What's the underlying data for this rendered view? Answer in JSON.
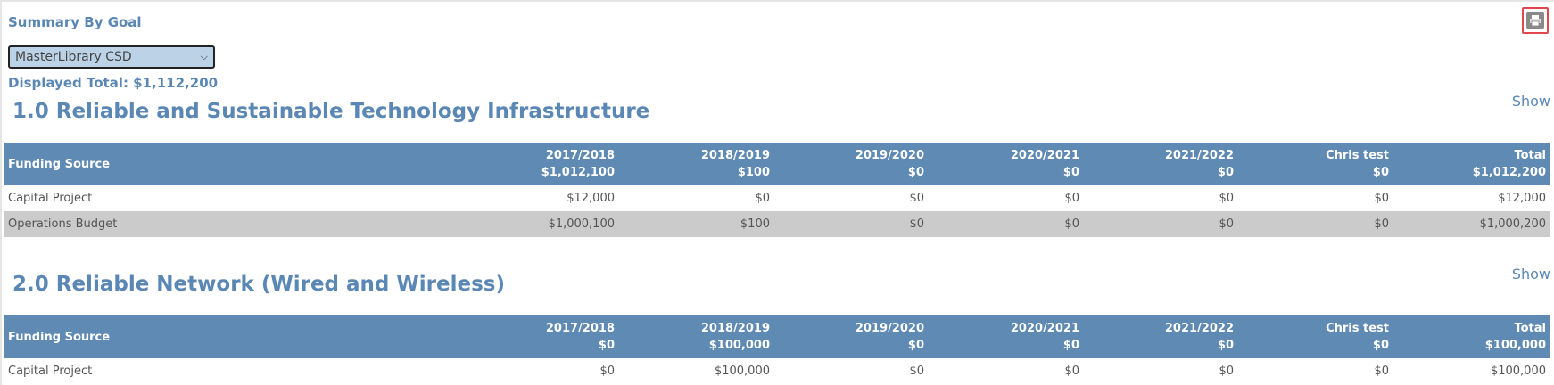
{
  "page": {
    "title": "Summary By Goal",
    "print_icon": "print-icon",
    "library_select": {
      "selected": "MasterLibrary CSD"
    },
    "displayed_total": "Displayed Total: $1,112,200"
  },
  "goals": [
    {
      "title": "1.0 Reliable and Sustainable Technology Infrastructure",
      "show_label": "Show",
      "columns": [
        {
          "name": "Funding Source",
          "total": ""
        },
        {
          "name": "2017/2018",
          "total": "$1,012,100"
        },
        {
          "name": "2018/2019",
          "total": "$100"
        },
        {
          "name": "2019/2020",
          "total": "$0"
        },
        {
          "name": "2020/2021",
          "total": "$0"
        },
        {
          "name": "2021/2022",
          "total": "$0"
        },
        {
          "name": "Chris test",
          "total": "$0"
        },
        {
          "name": "Total",
          "total": "$1,012,200"
        }
      ],
      "rows": [
        [
          "Capital Project",
          "$12,000",
          "$0",
          "$0",
          "$0",
          "$0",
          "$0",
          "$12,000"
        ],
        [
          "Operations Budget",
          "$1,000,100",
          "$100",
          "$0",
          "$0",
          "$0",
          "$0",
          "$1,000,200"
        ]
      ]
    },
    {
      "title": "2.0 Reliable Network (Wired and Wireless)",
      "show_label": "Show",
      "columns": [
        {
          "name": "Funding Source",
          "total": ""
        },
        {
          "name": "2017/2018",
          "total": "$0"
        },
        {
          "name": "2018/2019",
          "total": "$100,000"
        },
        {
          "name": "2019/2020",
          "total": "$0"
        },
        {
          "name": "2020/2021",
          "total": "$0"
        },
        {
          "name": "2021/2022",
          "total": "$0"
        },
        {
          "name": "Chris test",
          "total": "$0"
        },
        {
          "name": "Total",
          "total": "$100,000"
        }
      ],
      "rows": [
        [
          "Capital Project",
          "$0",
          "$100,000",
          "$0",
          "$0",
          "$0",
          "$0",
          "$100,000"
        ]
      ]
    }
  ]
}
